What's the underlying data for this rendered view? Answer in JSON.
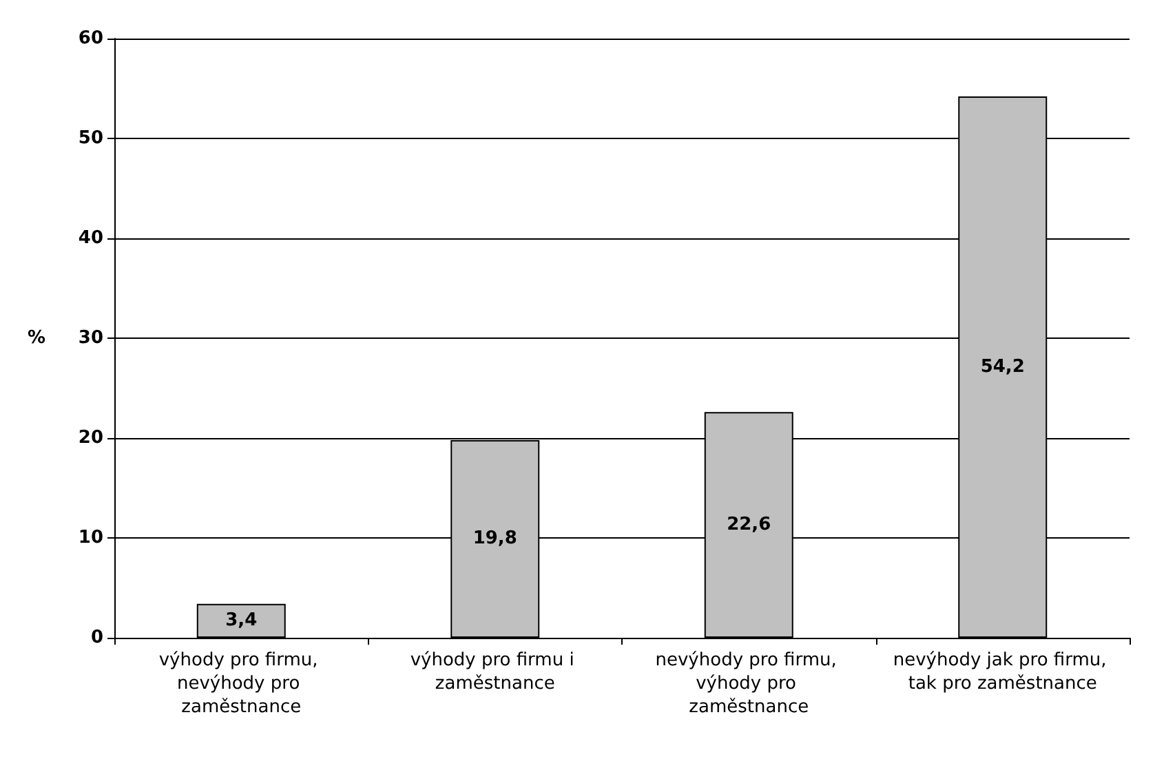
{
  "chart_data": {
    "type": "bar",
    "ylabel": "%",
    "categories": [
      "výhody pro firmu, nevýhody pro zaměstnance",
      "výhody pro firmu i zaměstnance",
      "nevýhody pro firmu, výhody pro zaměstnance",
      "nevýhody jak pro firmu, tak pro zaměstnance"
    ],
    "values": [
      3.4,
      19.8,
      22.6,
      54.2
    ],
    "value_labels": [
      "3,4",
      "19,8",
      "22,6",
      "54,2"
    ],
    "color": "#c0c0c0",
    "ylim": [
      0,
      60
    ],
    "yticks": [
      0,
      10,
      20,
      30,
      40,
      50,
      60
    ],
    "grid": "y"
  }
}
